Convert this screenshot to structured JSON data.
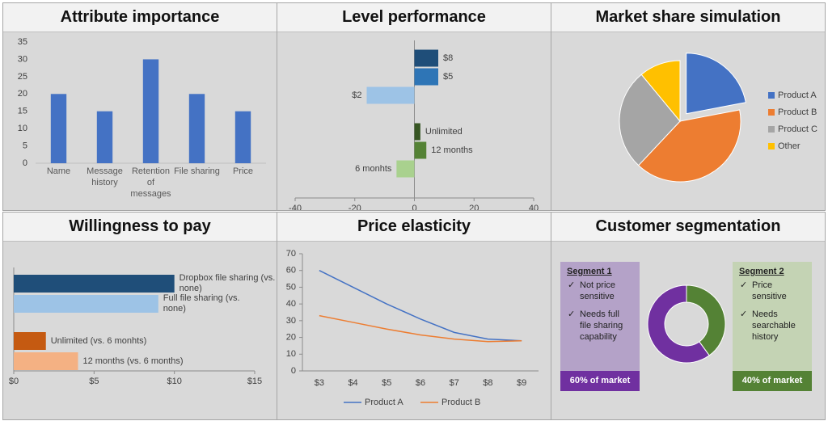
{
  "chart_data": [
    {
      "type": "bar",
      "title": "Attribute importance",
      "categories": [
        "Name",
        "Message history",
        "Retention of messages",
        "File sharing",
        "Price"
      ],
      "values": [
        20,
        15,
        30,
        20,
        15
      ],
      "color": "#4472c4",
      "ylim": [
        0,
        35
      ],
      "yticks": [
        0,
        5,
        10,
        15,
        20,
        25,
        30,
        35
      ],
      "grid": false
    },
    {
      "type": "bar",
      "orientation": "horizontal",
      "title": "Level performance",
      "categories": [
        "$8",
        "$5",
        "$2",
        "Unlimited",
        "12 months",
        "6 monhts"
      ],
      "values": [
        8,
        8,
        -16,
        2,
        4,
        -6
      ],
      "colors": [
        "#1f4e79",
        "#2e75b6",
        "#9dc3e6",
        "#375623",
        "#548235",
        "#a9d18e"
      ],
      "xlim": [
        -40,
        40
      ],
      "xticks": [
        -40,
        -20,
        0,
        20,
        40
      ]
    },
    {
      "type": "pie",
      "title": "Market share simulation",
      "categories": [
        "Product A",
        "Product B",
        "Product C",
        "Other"
      ],
      "values": [
        22,
        40,
        27,
        11
      ],
      "colors": [
        "#4472c4",
        "#ed7d31",
        "#a5a5a5",
        "#ffc000"
      ],
      "exploded": [
        true,
        false,
        false,
        false
      ],
      "legend": "right"
    },
    {
      "type": "bar",
      "orientation": "horizontal",
      "title": "Willingness to pay",
      "categories": [
        "Dropbox file sharing (vs. none)",
        "Full file sharing (vs. none)",
        "Unlimited (vs. 6 monhts)",
        "12 months (vs. 6 months)"
      ],
      "values": [
        10,
        9,
        2,
        4
      ],
      "colors": [
        "#1f4e79",
        "#9dc3e6",
        "#c55a11",
        "#f4b183"
      ],
      "xlim": [
        0,
        15
      ],
      "xticks": [
        {
          "value": 0,
          "label": "$0"
        },
        {
          "value": 5,
          "label": "$5"
        },
        {
          "value": 10,
          "label": "$10"
        },
        {
          "value": 15,
          "label": "$15"
        }
      ]
    },
    {
      "type": "line",
      "title": "Price elasticity",
      "x": [
        "$3",
        "$4",
        "$5",
        "$6",
        "$7",
        "$8",
        "$9"
      ],
      "series": [
        {
          "name": "Product A",
          "color": "#4472c4",
          "values": [
            60,
            50,
            40,
            31,
            23,
            19,
            18
          ]
        },
        {
          "name": "Product B",
          "color": "#ed7d31",
          "values": [
            33,
            29,
            25,
            21.5,
            19,
            17.5,
            18
          ]
        }
      ],
      "ylim": [
        0,
        70
      ],
      "yticks": [
        0,
        10,
        20,
        30,
        40,
        50,
        60,
        70
      ],
      "legend": "bottom"
    },
    {
      "type": "doughnut",
      "title": "Customer segmentation",
      "values": [
        60,
        40
      ],
      "colors": [
        "#7030a0",
        "#548235"
      ],
      "segments": [
        {
          "title": "Segment 1",
          "points": [
            "Not price sensitive",
            "Needs full file sharing capability"
          ],
          "footer": "60% of market",
          "box_color": "#b4a2c8",
          "footer_color": "#7030a0"
        },
        {
          "title": "Segment 2",
          "points": [
            "Price sensitive",
            "Needs searchable history"
          ],
          "footer": "40% of market",
          "box_color": "#c4d3b4",
          "footer_color": "#548235"
        }
      ]
    }
  ]
}
